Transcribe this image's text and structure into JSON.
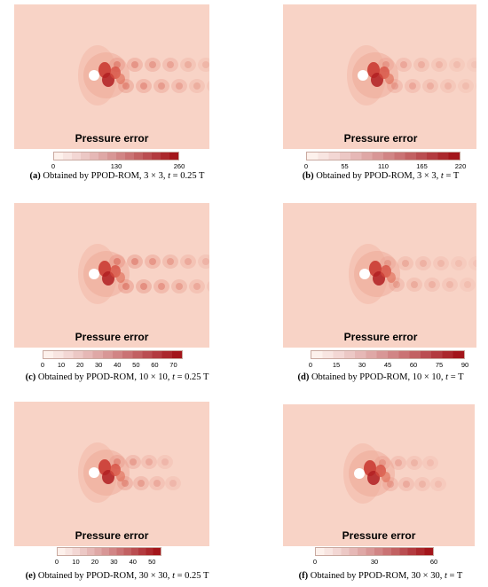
{
  "colorbar_title": "Pressure error",
  "panels": [
    {
      "letter": "(a)",
      "caption_text": "Obtained by PPOD-ROM, 3 × 3,",
      "time_var": "t",
      "time_value": "= 0.25 T",
      "ticks": [
        "0",
        "130",
        "260"
      ],
      "scale_max": 260
    },
    {
      "letter": "(b)",
      "caption_text": "Obtained by PPOD-ROM, 3 × 3,",
      "time_var": "t",
      "time_value": "= T",
      "ticks": [
        "0",
        "55",
        "110",
        "165",
        "220"
      ],
      "scale_max": 220
    },
    {
      "letter": "(c)",
      "caption_text": "Obtained by PPOD-ROM, 10 × 10,",
      "time_var": "t",
      "time_value": "= 0.25 T",
      "ticks": [
        "0",
        "10",
        "20",
        "30",
        "40",
        "50",
        "60",
        "70"
      ],
      "scale_max": 75
    },
    {
      "letter": "(d)",
      "caption_text": "Obtained by PPOD-ROM, 10 × 10,",
      "time_var": "t",
      "time_value": "= T",
      "ticks": [
        "0",
        "15",
        "30",
        "45",
        "60",
        "75",
        "90"
      ],
      "scale_max": 90
    },
    {
      "letter": "(e)",
      "caption_text": "Obtained by PPOD-ROM, 30 × 30,",
      "time_var": "t",
      "time_value": "= 0.25 T",
      "ticks": [
        "0",
        "10",
        "20",
        "30",
        "40",
        "50"
      ],
      "scale_max": 55
    },
    {
      "letter": "(f)",
      "caption_text": "Obtained by PPOD-ROM, 30 × 30,",
      "time_var": "t",
      "time_value": "= T",
      "ticks": [
        "0",
        "30",
        "60"
      ],
      "scale_max": 60
    }
  ],
  "colors": {
    "background_field": "#f8d3c6",
    "low": "#fdf1ec",
    "high": "#a3151a"
  }
}
